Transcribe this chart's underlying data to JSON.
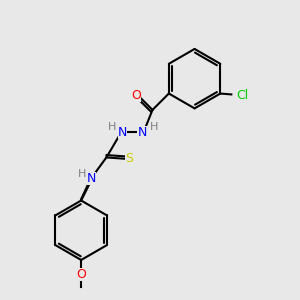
{
  "background_color": "#e8e8e8",
  "bond_color": "#000000",
  "bond_width": 1.5,
  "atom_colors": {
    "C": "#000000",
    "N": "#0000ff",
    "O": "#ff0000",
    "S": "#cccc00",
    "Cl": "#00cc00",
    "H": "#808080"
  },
  "font_size": 9,
  "figsize": [
    3.0,
    3.0
  ],
  "dpi": 100
}
